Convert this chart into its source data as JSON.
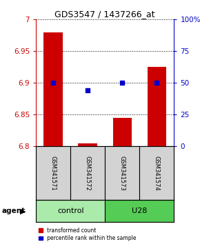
{
  "title": "GDS3547 / 1437266_at",
  "samples": [
    "GSM341571",
    "GSM341572",
    "GSM341573",
    "GSM341574"
  ],
  "groups": [
    "control",
    "control",
    "U28",
    "U28"
  ],
  "bar_bottoms": [
    6.8,
    6.8,
    6.8,
    6.8
  ],
  "bar_tops": [
    6.98,
    6.805,
    6.845,
    6.925
  ],
  "percentile_values": [
    6.9,
    6.888,
    6.9,
    6.9
  ],
  "ylim": [
    6.8,
    7.0
  ],
  "yticks": [
    6.8,
    6.85,
    6.9,
    6.95,
    7.0
  ],
  "ytick_labels": [
    "6.8",
    "6.85",
    "6.9",
    "6.95",
    "7"
  ],
  "y2ticks": [
    0,
    25,
    50,
    75,
    100
  ],
  "y2tick_labels": [
    "0",
    "25",
    "50",
    "75",
    "100%"
  ],
  "bar_color": "#cc0000",
  "dot_color": "#0000cc",
  "left_tick_color": "#cc0000",
  "right_tick_color": "#0000cc",
  "group_colors": {
    "control": "#aaeaaa",
    "U28": "#55cc55"
  },
  "legend_red": "transformed count",
  "legend_blue": "percentile rank within the sample",
  "agent_label": "agent",
  "bar_width": 0.55
}
